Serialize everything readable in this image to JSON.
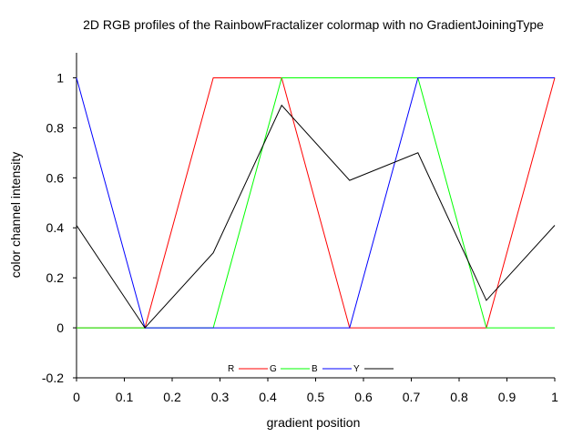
{
  "chart_data": {
    "type": "line",
    "title": "2D RGB profiles of the RainbowFractalizer colormap with no GradientJoiningType",
    "xlabel": "gradient position",
    "ylabel": "color channel intensity",
    "xlim": [
      0,
      1
    ],
    "ylim": [
      -0.2,
      1.1
    ],
    "x_ticks": [
      0,
      0.1,
      0.2,
      0.3,
      0.4,
      0.5,
      0.6,
      0.7,
      0.8,
      0.9,
      1
    ],
    "x_tick_labels": [
      "0",
      "0.1",
      "0.2",
      "0.3",
      "0.4",
      "0.5",
      "0.6",
      "0.7",
      "0.8",
      "0.9",
      "1"
    ],
    "y_ticks": [
      -0.2,
      0,
      0.2,
      0.4,
      0.6,
      0.8,
      1
    ],
    "y_tick_labels": [
      "-0.2",
      "0",
      "0.2",
      "0.4",
      "0.6",
      "0.8",
      "1"
    ],
    "grid": false,
    "legend_position": "bottom-center",
    "series": [
      {
        "name": "R",
        "color": "#ff0000",
        "x": [
          0,
          0.143,
          0.286,
          0.429,
          0.571,
          0.714,
          0.857,
          1
        ],
        "y": [
          0,
          0,
          1,
          1,
          0,
          0,
          0,
          1
        ]
      },
      {
        "name": "G",
        "color": "#00ff00",
        "x": [
          0,
          0.143,
          0.286,
          0.429,
          0.571,
          0.714,
          0.857,
          1
        ],
        "y": [
          0,
          0,
          0,
          1,
          1,
          1,
          0,
          0
        ]
      },
      {
        "name": "B",
        "color": "#0000ff",
        "x": [
          0,
          0.143,
          0.286,
          0.429,
          0.571,
          0.714,
          0.857,
          1
        ],
        "y": [
          1,
          0,
          0,
          0,
          0,
          1,
          1,
          1
        ]
      },
      {
        "name": "Y",
        "color": "#000000",
        "x": [
          0,
          0.143,
          0.286,
          0.429,
          0.571,
          0.714,
          0.857,
          1
        ],
        "y": [
          0.41,
          0,
          0.3,
          0.89,
          0.59,
          0.7,
          0.11,
          0.41
        ]
      }
    ]
  }
}
